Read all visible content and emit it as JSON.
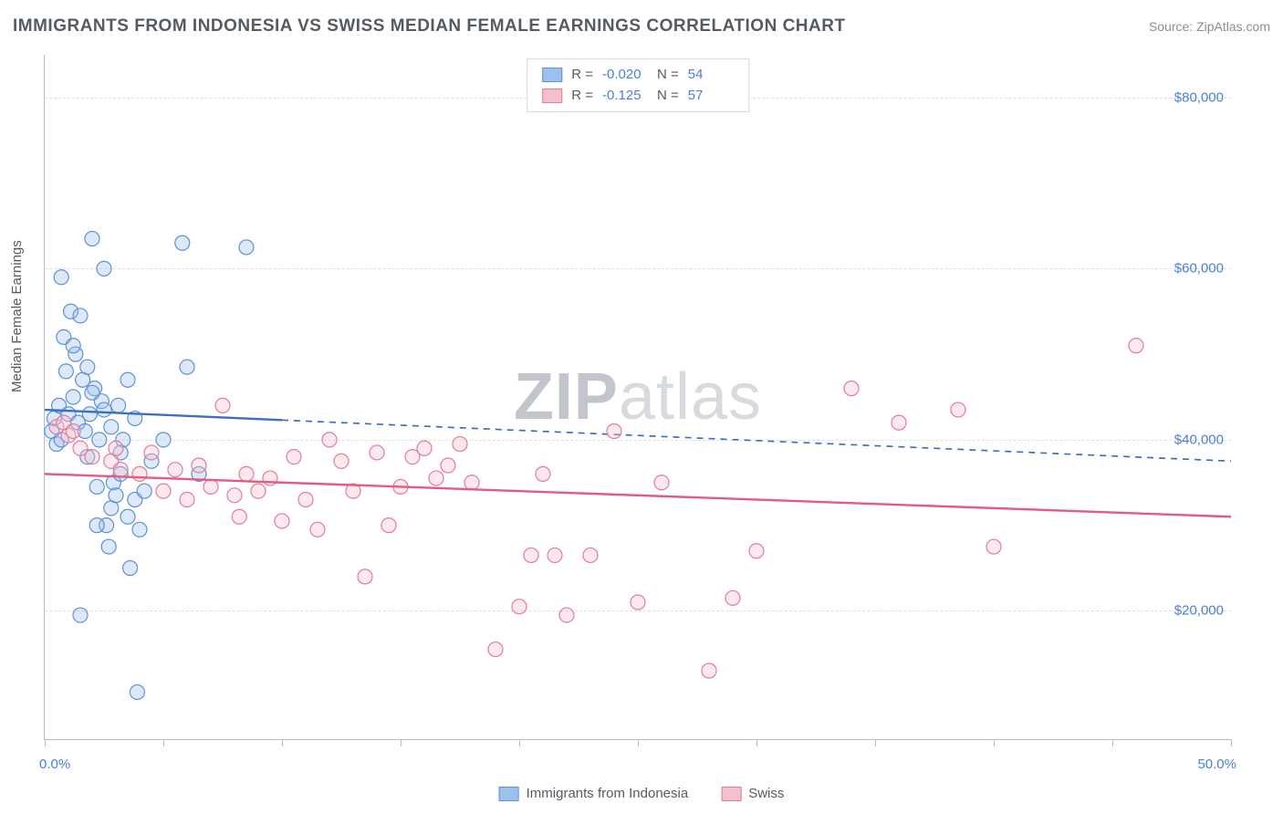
{
  "title": "IMMIGRANTS FROM INDONESIA VS SWISS MEDIAN FEMALE EARNINGS CORRELATION CHART",
  "source_label": "Source:",
  "source_name": "ZipAtlas.com",
  "watermark": {
    "bold": "ZIP",
    "light": "atlas"
  },
  "ylabel": "Median Female Earnings",
  "chart": {
    "type": "scatter-with-regression",
    "xlim": [
      0,
      50
    ],
    "ylim": [
      5000,
      85000
    ],
    "y_gridlines": [
      20000,
      40000,
      60000,
      80000
    ],
    "y_tick_labels": [
      "$20,000",
      "$40,000",
      "$60,000",
      "$80,000"
    ],
    "x_ticks_pct": [
      0,
      5,
      10,
      15,
      20,
      25,
      30,
      35,
      40,
      45,
      50
    ],
    "x_range_labels": {
      "min": "0.0%",
      "max": "50.0%"
    },
    "background_color": "#ffffff",
    "grid_color": "#dcdfe4",
    "axis_color": "#b8bcc3",
    "tick_label_color": "#4a7fd4",
    "marker_radius": 8,
    "marker_fill_opacity": 0.35,
    "marker_stroke_width": 1.2,
    "trend_line_width": 2.4,
    "series": [
      {
        "key": "indonesia",
        "label": "Immigrants from Indonesia",
        "marker_fill": "#9dc1ea",
        "marker_stroke": "#5c92d6",
        "trend_color": "#3a6fc2",
        "trend_solid_until_x": 10,
        "trend_y_at_x0": 43500,
        "trend_y_at_x50": 37500,
        "R": "-0.020",
        "N": "54",
        "points": [
          [
            0.3,
            41000
          ],
          [
            0.4,
            42500
          ],
          [
            0.5,
            39500
          ],
          [
            0.6,
            44000
          ],
          [
            0.7,
            40000
          ],
          [
            0.8,
            52000
          ],
          [
            0.9,
            48000
          ],
          [
            1.0,
            43000
          ],
          [
            1.1,
            55000
          ],
          [
            1.2,
            45000
          ],
          [
            1.3,
            50000
          ],
          [
            1.4,
            42000
          ],
          [
            1.5,
            54500
          ],
          [
            1.6,
            47000
          ],
          [
            1.7,
            41000
          ],
          [
            1.8,
            38000
          ],
          [
            1.9,
            43000
          ],
          [
            2.0,
            63500
          ],
          [
            2.1,
            46000
          ],
          [
            2.2,
            34500
          ],
          [
            2.3,
            40000
          ],
          [
            2.4,
            44500
          ],
          [
            2.5,
            60000
          ],
          [
            2.6,
            30000
          ],
          [
            2.7,
            27500
          ],
          [
            2.8,
            32000
          ],
          [
            2.9,
            35000
          ],
          [
            3.0,
            33500
          ],
          [
            3.1,
            44000
          ],
          [
            3.2,
            36000
          ],
          [
            3.3,
            40000
          ],
          [
            3.5,
            47000
          ],
          [
            3.6,
            25000
          ],
          [
            3.8,
            33000
          ],
          [
            1.5,
            19500
          ],
          [
            3.9,
            10500
          ],
          [
            4.0,
            29500
          ],
          [
            0.7,
            59000
          ],
          [
            1.2,
            51000
          ],
          [
            2.0,
            45500
          ],
          [
            2.5,
            43500
          ],
          [
            2.8,
            41500
          ],
          [
            3.2,
            38500
          ],
          [
            3.5,
            31000
          ],
          [
            3.8,
            42500
          ],
          [
            4.2,
            34000
          ],
          [
            4.5,
            37500
          ],
          [
            5.0,
            40000
          ],
          [
            5.8,
            63000
          ],
          [
            6.0,
            48500
          ],
          [
            6.5,
            36000
          ],
          [
            8.5,
            62500
          ],
          [
            2.2,
            30000
          ],
          [
            1.8,
            48500
          ]
        ]
      },
      {
        "key": "swiss",
        "label": "Swiss",
        "marker_fill": "#f4c0cd",
        "marker_stroke": "#e57b98",
        "trend_color": "#e35a82",
        "trend_solid_until_x": 50,
        "trend_y_at_x0": 36000,
        "trend_y_at_x50": 31000,
        "R": "-0.125",
        "N": "57",
        "points": [
          [
            0.5,
            41500
          ],
          [
            0.8,
            42000
          ],
          [
            1.0,
            40500
          ],
          [
            1.2,
            41000
          ],
          [
            1.5,
            39000
          ],
          [
            2.0,
            38000
          ],
          [
            2.8,
            37500
          ],
          [
            3.0,
            39000
          ],
          [
            3.2,
            36500
          ],
          [
            4.0,
            36000
          ],
          [
            4.5,
            38500
          ],
          [
            5.0,
            34000
          ],
          [
            5.5,
            36500
          ],
          [
            6.0,
            33000
          ],
          [
            6.5,
            37000
          ],
          [
            7.0,
            34500
          ],
          [
            7.5,
            44000
          ],
          [
            8.0,
            33500
          ],
          [
            8.2,
            31000
          ],
          [
            8.5,
            36000
          ],
          [
            9.0,
            34000
          ],
          [
            9.5,
            35500
          ],
          [
            10.0,
            30500
          ],
          [
            10.5,
            38000
          ],
          [
            11.0,
            33000
          ],
          [
            11.5,
            29500
          ],
          [
            12.0,
            40000
          ],
          [
            12.5,
            37500
          ],
          [
            13.0,
            34000
          ],
          [
            13.5,
            24000
          ],
          [
            14.0,
            38500
          ],
          [
            15.0,
            34500
          ],
          [
            15.5,
            38000
          ],
          [
            16.0,
            39000
          ],
          [
            16.5,
            35500
          ],
          [
            17.5,
            39500
          ],
          [
            18.0,
            35000
          ],
          [
            19.0,
            15500
          ],
          [
            20.0,
            20500
          ],
          [
            20.5,
            26500
          ],
          [
            21.0,
            36000
          ],
          [
            21.5,
            26500
          ],
          [
            22.0,
            19500
          ],
          [
            23.0,
            26500
          ],
          [
            24.0,
            41000
          ],
          [
            25.0,
            21000
          ],
          [
            26.0,
            35000
          ],
          [
            28.0,
            13000
          ],
          [
            29.0,
            21500
          ],
          [
            30.0,
            27000
          ],
          [
            34.0,
            46000
          ],
          [
            36.0,
            42000
          ],
          [
            38.5,
            43500
          ],
          [
            40.0,
            27500
          ],
          [
            46.0,
            51000
          ],
          [
            14.5,
            30000
          ],
          [
            17.0,
            37000
          ]
        ]
      }
    ]
  },
  "stats_box": {
    "R_label": "R =",
    "N_label": "N ="
  }
}
